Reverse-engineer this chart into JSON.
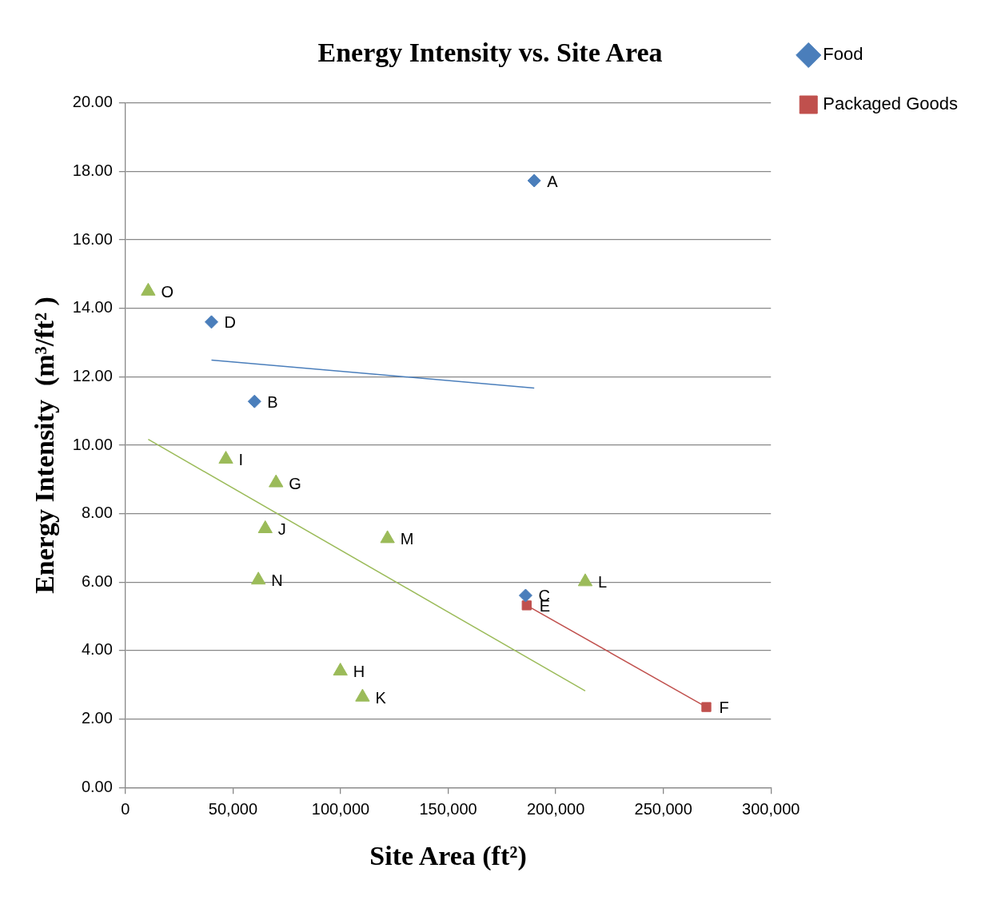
{
  "chart_data": {
    "type": "scatter",
    "title": "Energy Intensity vs. Site Area",
    "xlabel": "Site Area (ft²)",
    "ylabel": "Energy Intensity  (m³/ft² )",
    "series": [
      {
        "name": "Food",
        "color": "#4a7ebb",
        "marker": "diamond",
        "x": [
          190000,
          40000,
          60000,
          186000
        ],
        "values": [
          17.73,
          13.6,
          11.28,
          5.61
        ]
      },
      {
        "name": "Packaged Goods",
        "color": "#c0504d",
        "marker": "square",
        "x": [
          186500,
          270000
        ],
        "values": [
          5.32,
          2.35
        ]
      },
      {
        "color": "#9bbb59",
        "marker": "triangle",
        "x": [
          10600,
          46700,
          70000,
          65000,
          61800,
          121800,
          213700,
          99900,
          110200
        ],
        "values": [
          14.5,
          9.59,
          8.9,
          7.56,
          6.06,
          7.27,
          6.01,
          3.4,
          2.64
        ]
      },
      {
        "type": "line",
        "color": "#4a7ebb",
        "marker": "none",
        "x": [
          40000,
          190000
        ],
        "values": [
          12.49,
          11.67
        ]
      },
      {
        "type": "line",
        "color": "#c0504d",
        "marker": "none",
        "x": [
          186500,
          270000
        ],
        "values": [
          5.32,
          2.35
        ]
      },
      {
        "type": "line",
        "color": "#9bbb59",
        "marker": "none",
        "x": [
          10600,
          213700
        ],
        "values": [
          10.17,
          2.82
        ]
      }
    ],
    "annotations": [
      {
        "text": "A",
        "x": 190000,
        "y": 17.73
      },
      {
        "text": "D",
        "x": 40000,
        "y": 13.6
      },
      {
        "text": "B",
        "x": 60000,
        "y": 11.28
      },
      {
        "text": "C",
        "x": 186000,
        "y": 5.61
      },
      {
        "text": "E",
        "x": 186500,
        "y": 5.32
      },
      {
        "text": "F",
        "x": 270000,
        "y": 2.35
      },
      {
        "text": "O",
        "x": 10600,
        "y": 14.5
      },
      {
        "text": "I",
        "x": 46700,
        "y": 9.59
      },
      {
        "text": "G",
        "x": 70000,
        "y": 8.9
      },
      {
        "text": "J",
        "x": 65000,
        "y": 7.56
      },
      {
        "text": "N",
        "x": 61800,
        "y": 6.06
      },
      {
        "text": "M",
        "x": 121800,
        "y": 7.27
      },
      {
        "text": "L",
        "x": 213700,
        "y": 6.01
      },
      {
        "text": "H",
        "x": 99900,
        "y": 3.4
      },
      {
        "text": "K",
        "x": 110200,
        "y": 2.64
      }
    ],
    "xlim": [
      0,
      300000
    ],
    "xticks": [
      {
        "value": 0,
        "label": "0"
      },
      {
        "value": 50000,
        "label": "50,000"
      },
      {
        "value": 100000,
        "label": "100,000"
      },
      {
        "value": 150000,
        "label": "150,000"
      },
      {
        "value": 200000,
        "label": "200,000"
      },
      {
        "value": 250000,
        "label": "250,000"
      },
      {
        "value": 300000,
        "label": "300,000"
      }
    ],
    "ylim": [
      0,
      20
    ],
    "yticks": [
      {
        "value": 0,
        "label": "0.00"
      },
      {
        "value": 2,
        "label": "2.00"
      },
      {
        "value": 4,
        "label": "4.00"
      },
      {
        "value": 6,
        "label": "6.00"
      },
      {
        "value": 8,
        "label": "8.00"
      },
      {
        "value": 10,
        "label": "10.00"
      },
      {
        "value": 12,
        "label": "12.00"
      },
      {
        "value": 14,
        "label": "14.00"
      },
      {
        "value": 16,
        "label": "16.00"
      },
      {
        "value": 18,
        "label": "18.00"
      },
      {
        "value": 20,
        "label": "20.00"
      }
    ],
    "grid": "y",
    "legend": "right"
  }
}
